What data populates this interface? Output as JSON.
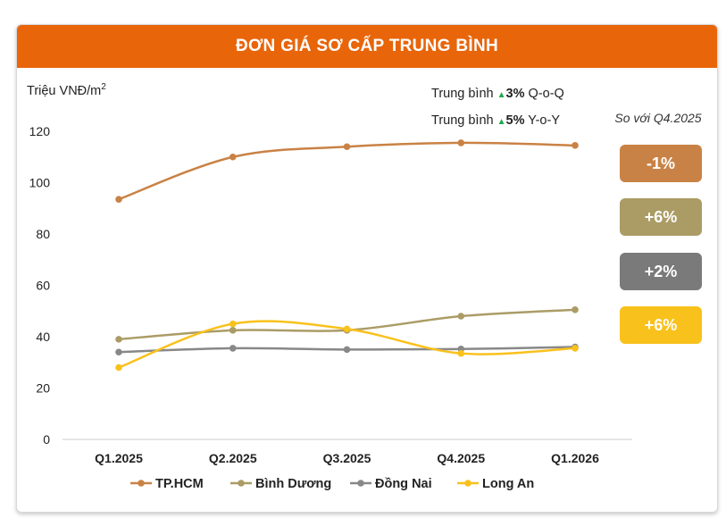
{
  "title": "ĐƠN GIÁ SƠ CẤP TRUNG BÌNH",
  "chart_data": {
    "type": "line",
    "ylabel": "Triệu VNĐ/m",
    "ylabel_sup": "2",
    "ylim": [
      0,
      120
    ],
    "yticks": [
      0,
      20,
      40,
      60,
      80,
      100,
      120
    ],
    "categories": [
      "Q1.2025",
      "Q2.2025",
      "Q3.2025",
      "Q4.2025",
      "Q1.2026"
    ],
    "series": [
      {
        "name": "TP.HCM",
        "color": "#c98245",
        "values": [
          93.5,
          110,
          114,
          115.5,
          114.5
        ]
      },
      {
        "name": "Bình Dương",
        "color": "#ab9c66",
        "values": [
          39,
          42.5,
          42.5,
          48,
          50.5
        ]
      },
      {
        "name": "Đồng Nai",
        "color": "#888888",
        "values": [
          34,
          35.5,
          35,
          35.2,
          36
        ]
      },
      {
        "name": "Long An",
        "color": "#f9c11c",
        "values": [
          28,
          45,
          43,
          33.5,
          35.5
        ]
      }
    ],
    "grid": false,
    "legend": "bottom",
    "annotations": {
      "qoq": {
        "prefix": "Trung bình ",
        "arrow": "▲",
        "value": "3%",
        "suffix": " Q-o-Q"
      },
      "yoy": {
        "prefix": "Trung bình ",
        "arrow": "▲",
        "value": "5%",
        "suffix": " Y-o-Y"
      }
    },
    "comparison": {
      "label": "So với Q4.2025",
      "badges": [
        {
          "series": "TP.HCM",
          "text": "-1%",
          "color": "#c98245"
        },
        {
          "series": "Bình Dương",
          "text": "+6%",
          "color": "#ab9c66"
        },
        {
          "series": "Đồng Nai",
          "text": "+2%",
          "color": "#7a7a7a"
        },
        {
          "series": "Long An",
          "text": "+6%",
          "color": "#f9c11c"
        }
      ]
    }
  }
}
